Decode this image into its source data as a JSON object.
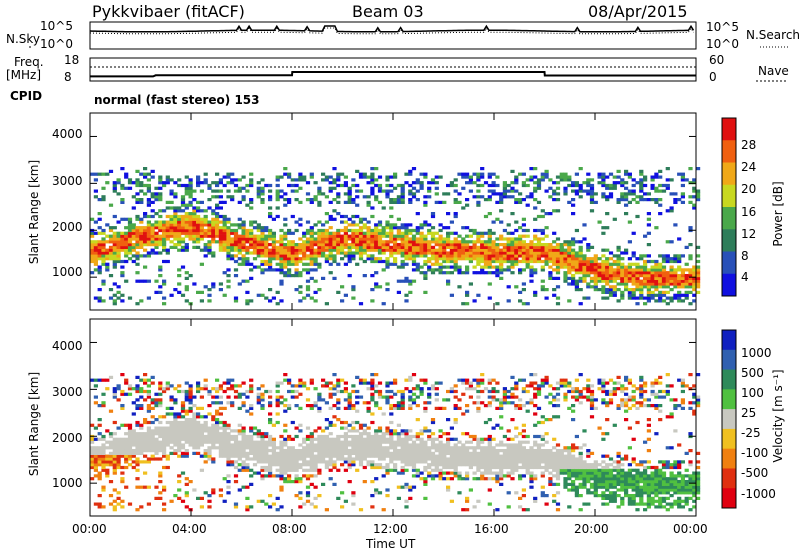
{
  "header": {
    "radar": "Pykkvibaer (fitACF)",
    "beam": "Beam 03",
    "date": "08/Apr/2015"
  },
  "noise_panel": {
    "left_label": "N.Sky",
    "right_label": "N.Search",
    "left_ticks": [
      "10^5",
      "10^0"
    ],
    "right_ticks": [
      "10^5",
      "10^0"
    ]
  },
  "freq_panel": {
    "left_label_top": "Freq.",
    "left_label_bottom": "[MHz]",
    "right_label": "Nave",
    "left_ticks": [
      "18",
      "8"
    ],
    "right_ticks": [
      "60",
      "0"
    ]
  },
  "cpid": {
    "label": "CPID",
    "value": "normal (fast stereo) 153"
  },
  "power_panel": {
    "ylabel": "Slant Range [km]",
    "yticks": [
      "4000",
      "3000",
      "2000",
      "1000"
    ],
    "colorbar_label": "Power [dB]",
    "colorbar_ticks": [
      "28",
      "24",
      "20",
      "16",
      "12",
      "8",
      "4"
    ],
    "colors": [
      "#1010e0",
      "#2850b8",
      "#2e7d5a",
      "#4aa84a",
      "#c8d820",
      "#f0a818",
      "#f06010",
      "#e01010"
    ]
  },
  "velocity_panel": {
    "ylabel": "Slant Range [km]",
    "yticks": [
      "4000",
      "3000",
      "2000",
      "1000"
    ],
    "colorbar_label": "Velocity [m s⁻¹]",
    "colorbar_ticks": [
      "1000",
      "500",
      "100",
      "25",
      "-25",
      "-100",
      "-500",
      "-1000"
    ],
    "colors": [
      "#1020c0",
      "#3060b0",
      "#2e8a5a",
      "#50c040",
      "#c8c8c0",
      "#f0c020",
      "#f08010",
      "#e03010",
      "#e00010"
    ]
  },
  "x_axis": {
    "ticks": [
      "00:00",
      "04:00",
      "08:00",
      "12:00",
      "16:00",
      "20:00",
      "00:00"
    ],
    "label": "Time UT"
  },
  "chart_data": [
    {
      "type": "line",
      "title": "Pykkvibaer (fitACF)  Beam 03  08/Apr/2015",
      "x_unit": "hours UT",
      "xlim": [
        0,
        24
      ],
      "ylabel": "Frequency [MHz]",
      "ylim": [
        8,
        18
      ],
      "series": [
        {
          "name": "Freq.",
          "x": [
            0,
            2.5,
            2.6,
            8.0,
            8.01,
            18.0,
            18.01,
            24
          ],
          "values": [
            10.0,
            10.0,
            10.5,
            10.5,
            11.9,
            11.9,
            10.4,
            10.4
          ]
        }
      ]
    },
    {
      "type": "heatmap",
      "title": "Power [dB]",
      "ylabel": "Slant Range [km]",
      "xlabel": "Time UT",
      "xlim": [
        0,
        24
      ],
      "ylim": [
        300,
        4500
      ],
      "colorbar_range": [
        0,
        30
      ],
      "main_echo_band_range_km": {
        "x": [
          0,
          2,
          4,
          6,
          8,
          10,
          12,
          14,
          16,
          18,
          20,
          22,
          24
        ],
        "values": [
          1500,
          1850,
          2050,
          1700,
          1450,
          1800,
          1650,
          1550,
          1500,
          1500,
          1100,
          950,
          950
        ]
      }
    },
    {
      "type": "heatmap",
      "title": "Velocity [m s-1]",
      "ylabel": "Slant Range [km]",
      "xlabel": "Time UT",
      "xlim": [
        0,
        24
      ],
      "ylim": [
        300,
        4500
      ],
      "colorbar_range": [
        -1000,
        1000
      ]
    }
  ]
}
